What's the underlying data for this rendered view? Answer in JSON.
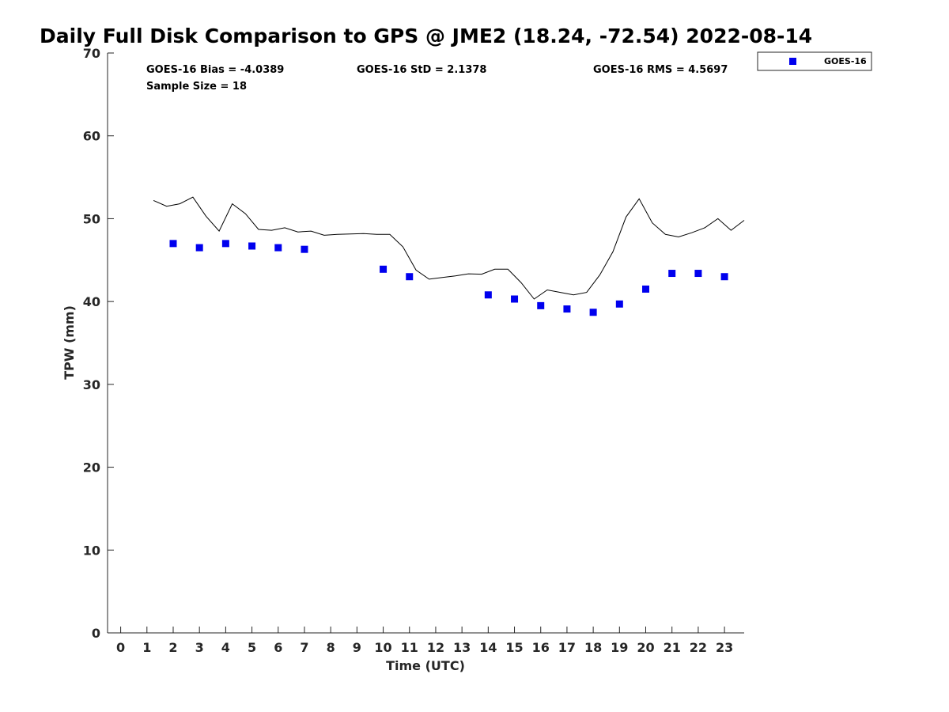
{
  "chart_data": {
    "type": "scatter",
    "title": "Daily Full Disk Comparison to GPS @ JME2 (18.24, -72.54) 2022-08-14",
    "xlabel": "Time (UTC)",
    "ylabel": "TPW (mm)",
    "xlim": [
      -0.5,
      23.75
    ],
    "ylim": [
      0,
      70
    ],
    "x_ticks": [
      0,
      1,
      2,
      3,
      4,
      5,
      6,
      7,
      8,
      9,
      10,
      11,
      12,
      13,
      14,
      15,
      16,
      17,
      18,
      19,
      20,
      21,
      22,
      23
    ],
    "y_ticks": [
      0,
      10,
      20,
      30,
      40,
      50,
      60,
      70
    ],
    "grid": false,
    "legend_position": "top-right, outside plot",
    "stats": {
      "bias": "GOES-16 Bias = -4.0389",
      "std": "GOES-16 StD = 2.1378",
      "rms": "GOES-16 RMS = 4.5697",
      "sample_size": "Sample Size = 18"
    },
    "series": [
      {
        "name": "GOES-16",
        "kind": "scatter",
        "marker": "square",
        "color": "#0000ee",
        "x": [
          2,
          3,
          4,
          5,
          6,
          7,
          10,
          11,
          14,
          15,
          16,
          17,
          18,
          19,
          20,
          21,
          22,
          23
        ],
        "y": [
          47.0,
          46.5,
          47.0,
          46.7,
          46.5,
          46.3,
          43.9,
          43.0,
          40.8,
          40.3,
          39.5,
          39.1,
          38.7,
          39.7,
          41.5,
          43.4,
          43.4,
          43.0
        ]
      },
      {
        "kind": "line",
        "color": "#000000",
        "x": [
          1.25,
          1.75,
          2.25,
          2.75,
          3.25,
          3.75,
          4.25,
          4.75,
          5.25,
          5.75,
          6.25,
          6.75,
          7.25,
          7.75,
          8.25,
          8.75,
          9.25,
          9.75,
          10.25,
          10.75,
          11.25,
          11.75,
          12.25,
          12.75,
          13.25,
          13.75,
          14.25,
          14.75,
          15.25,
          15.75,
          16.25,
          16.75,
          17.25,
          17.75,
          18.25,
          18.75,
          19.25,
          19.75,
          20.25,
          20.75,
          21.25,
          21.75,
          22.25,
          22.75,
          23.25,
          23.75
        ],
        "y": [
          52.2,
          51.5,
          51.8,
          52.6,
          50.3,
          48.5,
          51.8,
          50.6,
          48.7,
          48.6,
          48.9,
          48.4,
          48.5,
          48.0,
          48.1,
          48.15,
          48.2,
          48.1,
          48.1,
          46.6,
          43.8,
          42.7,
          42.9,
          43.1,
          43.35,
          43.3,
          43.9,
          43.9,
          42.3,
          40.3,
          41.4,
          41.1,
          40.8,
          41.1,
          43.2,
          46.0,
          50.2,
          52.4,
          49.5,
          48.1,
          47.8,
          48.3,
          48.9,
          50.0,
          48.6,
          49.8
        ]
      }
    ]
  }
}
